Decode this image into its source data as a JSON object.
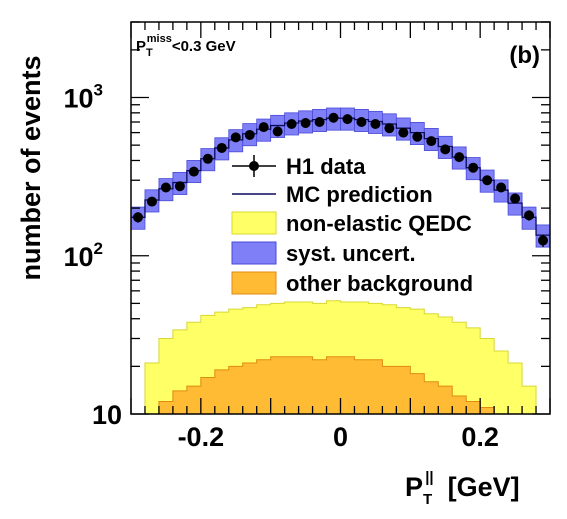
{
  "chart_data": {
    "type": "histogram",
    "ylabel": "number of events",
    "xlabel": {
      "base": "P",
      "sub": "T",
      "sup": "||",
      "unit": "[GeV]"
    },
    "xlim": [
      -0.3,
      0.3
    ],
    "ylim": [
      10,
      3000
    ],
    "log_y": true,
    "x_ticks": [
      -0.2,
      0,
      0.2
    ],
    "x_tick_labels": [
      "-0.2",
      "0",
      "0.2"
    ],
    "y_ticks": [
      {
        "value": 10,
        "base": "10",
        "exp": ""
      },
      {
        "value": 100,
        "base": "10",
        "exp": "2"
      },
      {
        "value": 1000,
        "base": "10",
        "exp": "3"
      }
    ],
    "panel_label": "(b)",
    "cut_annotation": {
      "base": "P",
      "sub": "T",
      "sup": "miss",
      "rest": "<0.3 GeV"
    },
    "bin_edges": [
      -0.3,
      -0.28,
      -0.26,
      -0.24,
      -0.22,
      -0.2,
      -0.18,
      -0.16,
      -0.14,
      -0.12,
      -0.1,
      -0.08,
      -0.06,
      -0.04,
      -0.02,
      0.0,
      0.02,
      0.04,
      0.06,
      0.08,
      0.1,
      0.12,
      0.14,
      0.16,
      0.18,
      0.2,
      0.22,
      0.24,
      0.26,
      0.28,
      0.3
    ],
    "data_points": [
      175,
      220,
      270,
      275,
      340,
      410,
      480,
      560,
      580,
      650,
      610,
      680,
      690,
      700,
      745,
      730,
      700,
      680,
      640,
      600,
      565,
      530,
      470,
      420,
      360,
      300,
      270,
      230,
      180,
      125
    ],
    "mc_prediction": [
      175,
      225,
      265,
      290,
      345,
      410,
      480,
      540,
      590,
      630,
      665,
      690,
      710,
      725,
      740,
      740,
      725,
      705,
      680,
      640,
      600,
      550,
      490,
      420,
      360,
      300,
      260,
      215,
      175,
      135
    ],
    "syst_uncert_frac": 0.16,
    "non_elastic_qedc": [
      10,
      21,
      30,
      34,
      38,
      42,
      44,
      46,
      47,
      49,
      50,
      51,
      51,
      50,
      52,
      51,
      51,
      50,
      49,
      47,
      46,
      43,
      41,
      38,
      35,
      30,
      25,
      21,
      15,
      10
    ],
    "other_background": [
      10,
      10,
      12,
      14,
      15,
      17,
      19,
      20,
      21,
      22,
      23,
      23,
      23,
      22,
      23,
      23,
      22,
      22,
      20,
      20,
      18,
      16,
      15,
      13,
      12,
      11,
      10,
      10,
      10,
      10
    ],
    "legend": [
      {
        "label": "H1 data",
        "kind": "marker"
      },
      {
        "label": "MC prediction",
        "kind": "line"
      },
      {
        "label": "non-elastic QEDC",
        "kind": "fill"
      },
      {
        "label": "syst. uncert.",
        "kind": "fill"
      },
      {
        "label": "other background",
        "kind": "fill"
      }
    ],
    "colors": {
      "data": "#000000",
      "mc_line": "#0a0a5e",
      "syst": "#7f7ff7",
      "syst_edge": "#4a4ad8",
      "qedc": "#ffff66",
      "qedc_edge": "#d8d830",
      "bkg": "#ffbb33",
      "bkg_edge": "#e08a10"
    }
  }
}
